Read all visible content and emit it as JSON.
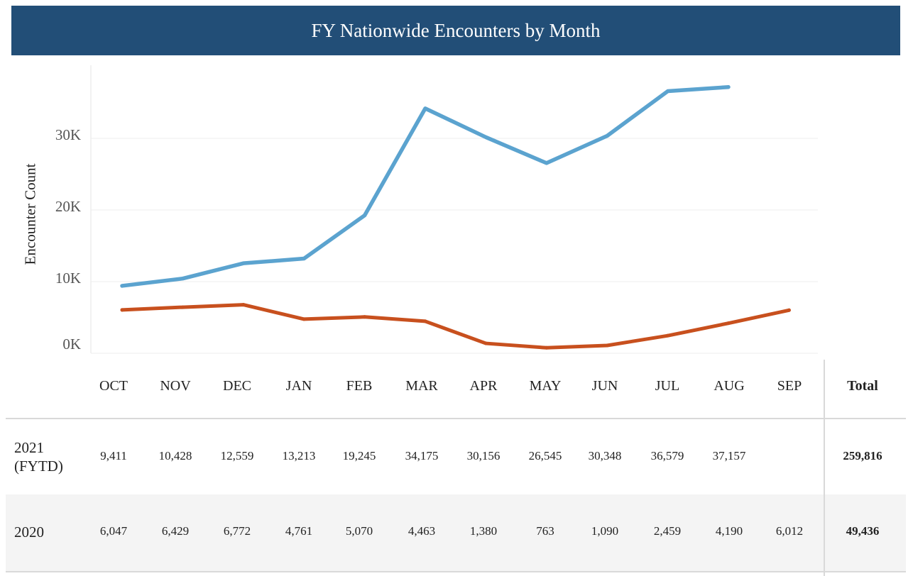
{
  "header": {
    "title": "FY Nationwide Encounters by Month"
  },
  "chart_data": {
    "type": "line",
    "title": "FY Nationwide Encounters by Month",
    "ylabel": "Encounter Count",
    "xlabel": "",
    "categories": [
      "OCT",
      "NOV",
      "DEC",
      "JAN",
      "FEB",
      "MAR",
      "APR",
      "MAY",
      "JUN",
      "JUL",
      "AUG",
      "SEP"
    ],
    "ylim": [
      0,
      40000
    ],
    "yticks": [
      {
        "value": 0,
        "label": "0K"
      },
      {
        "value": 10000,
        "label": "10K"
      },
      {
        "value": 20000,
        "label": "20K"
      },
      {
        "value": 30000,
        "label": "30K"
      }
    ],
    "grid": true,
    "series": [
      {
        "name": "2021 (FYTD)",
        "color": "#5ba3cf",
        "values": [
          9411,
          10428,
          12559,
          13213,
          19245,
          34175,
          30156,
          26545,
          30348,
          36579,
          37157,
          null
        ]
      },
      {
        "name": "2020",
        "color": "#c8501e",
        "values": [
          6047,
          6429,
          6772,
          4761,
          5070,
          4463,
          1380,
          763,
          1090,
          2459,
          4190,
          6012
        ]
      }
    ]
  },
  "table": {
    "months": [
      "OCT",
      "NOV",
      "DEC",
      "JAN",
      "FEB",
      "MAR",
      "APR",
      "MAY",
      "JUN",
      "JUL",
      "AUG",
      "SEP"
    ],
    "total_label": "Total",
    "rows": [
      {
        "label": "2021 (FYTD)",
        "values": [
          "9,411",
          "10,428",
          "12,559",
          "13,213",
          "19,245",
          "34,175",
          "30,156",
          "26,545",
          "30,348",
          "36,579",
          "37,157",
          ""
        ],
        "total": "259,816"
      },
      {
        "label": "2020",
        "values": [
          "6,047",
          "6,429",
          "6,772",
          "4,761",
          "5,070",
          "4,463",
          "1,380",
          "763",
          "1,090",
          "2,459",
          "4,190",
          "6,012"
        ],
        "total": "49,436"
      }
    ]
  }
}
